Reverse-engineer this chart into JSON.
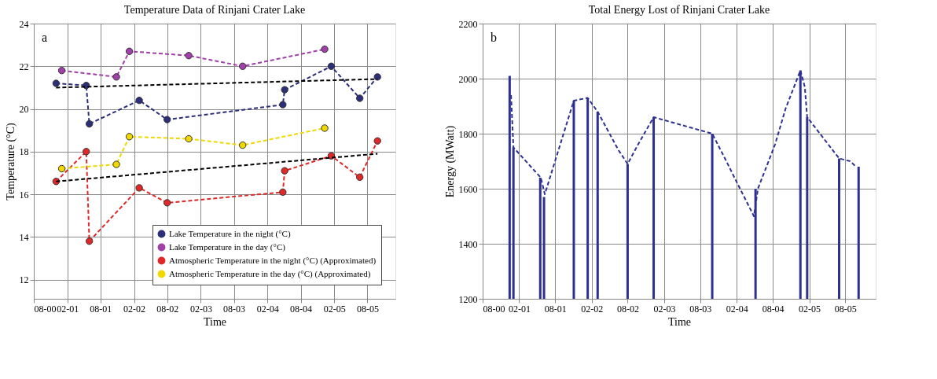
{
  "chart_data": [
    {
      "type": "line",
      "title": "Temperature Data  of Rinjani Crater Lake",
      "xlabel": "Time",
      "ylabel": "Temperature (°C)",
      "annotations": [
        "a"
      ],
      "xlim": [
        "2000-08",
        "2006-01"
      ],
      "xticks": [
        {
          "value": "2000-08",
          "label": "08-00"
        },
        {
          "value": "2001-02",
          "label": "02-01"
        },
        {
          "value": "2001-08",
          "label": "08-01"
        },
        {
          "value": "2002-02",
          "label": "02-02"
        },
        {
          "value": "2002-08",
          "label": "08-02"
        },
        {
          "value": "2003-02",
          "label": "02-03"
        },
        {
          "value": "2003-08",
          "label": "08-03"
        },
        {
          "value": "2004-02",
          "label": "02-04"
        },
        {
          "value": "2004-08",
          "label": "08-04"
        },
        {
          "value": "2005-02",
          "label": "02-05"
        },
        {
          "value": "2005-08",
          "label": "08-05"
        }
      ],
      "ylim": [
        11.1,
        24
      ],
      "yticks": [
        12,
        14,
        16,
        18,
        20,
        22,
        24
      ],
      "grid": true,
      "legend": "bottom right",
      "marker": "circle",
      "line_style": "dashed",
      "series": [
        {
          "name": "Lake Temperature in the night (°C)",
          "color": "#2b2f7a",
          "x": [
            "2000-12-01",
            "2001-05-15",
            "2001-06-01",
            "2002-03-01",
            "2002-08-01",
            "2004-04-25",
            "2004-05-05",
            "2005-01-15",
            "2005-06-20",
            "2005-09-25"
          ],
          "values": [
            21.2,
            21.1,
            19.3,
            20.4,
            19.5,
            20.2,
            20.9,
            22.0,
            20.5,
            21.5
          ]
        },
        {
          "name": "Lake Temperature in the day (°C)",
          "color": "#a040a8",
          "x": [
            "2001-01-01",
            "2001-10-27",
            "2002-01-06",
            "2002-11-27",
            "2003-09-18",
            "2004-12-10"
          ],
          "values": [
            21.8,
            21.5,
            22.7,
            22.5,
            22.0,
            22.8
          ]
        },
        {
          "name": "Atmospheric Temperature in the night (°C) (Approximated)",
          "color": "#e02828",
          "x": [
            "2000-12-01",
            "2001-05-15",
            "2001-06-01",
            "2002-03-01",
            "2002-08-01",
            "2004-04-25",
            "2004-05-05",
            "2005-01-15",
            "2005-06-20",
            "2005-09-25"
          ],
          "values": [
            16.6,
            18.0,
            13.8,
            16.3,
            15.6,
            16.1,
            17.1,
            17.8,
            16.8,
            18.5
          ]
        },
        {
          "name": "Atmospheric Temperature in the day (°C) (Approximated)",
          "color": "#f0d800",
          "x": [
            "2001-01-01",
            "2001-10-27",
            "2002-01-06",
            "2002-11-27",
            "2003-09-18",
            "2004-12-10"
          ],
          "values": [
            17.2,
            17.4,
            18.7,
            18.6,
            18.3,
            19.1
          ]
        },
        {
          "color": "#000000",
          "marker": "none",
          "x": [
            "2000-12-01",
            "2005-09-25"
          ],
          "values": [
            21.0,
            21.4
          ]
        },
        {
          "color": "#000000",
          "marker": "none",
          "x": [
            "2000-12-01",
            "2005-09-25"
          ],
          "values": [
            16.6,
            17.9
          ]
        }
      ]
    },
    {
      "type": "bar",
      "title": "Total  Energy Lost of Rinjani Crater Lake",
      "xlabel": "Time",
      "ylabel": "Energy (MWatt)",
      "annotations": [
        "b"
      ],
      "xlim": [
        "2000-08",
        "2006-01"
      ],
      "xticks": [
        {
          "value": "2000-08",
          "label": "08-00"
        },
        {
          "value": "2001-02",
          "label": "02-01"
        },
        {
          "value": "2001-08",
          "label": "08-01"
        },
        {
          "value": "2002-02",
          "label": "02-02"
        },
        {
          "value": "2002-08",
          "label": "08-02"
        },
        {
          "value": "2003-02",
          "label": "02-03"
        },
        {
          "value": "2003-08",
          "label": "08-03"
        },
        {
          "value": "2004-02",
          "label": "02-04"
        },
        {
          "value": "2004-08",
          "label": "08-04"
        },
        {
          "value": "2005-02",
          "label": "02-05"
        },
        {
          "value": "2005-08",
          "label": "08-05"
        }
      ],
      "ylim": [
        1200,
        2200
      ],
      "yticks": [
        1200,
        1400,
        1600,
        1800,
        2000,
        2200
      ],
      "grid": true,
      "series": [
        {
          "type": "bar",
          "color": "#2e3192",
          "x": [
            "2000-12-15",
            "2001-01-03",
            "2001-05-18",
            "2001-06-06",
            "2001-11-03",
            "2002-01-12",
            "2002-03-03",
            "2002-08-01",
            "2002-12-10",
            "2003-10-01",
            "2004-05-06",
            "2004-12-18",
            "2005-01-21",
            "2005-07-01",
            "2005-10-07"
          ],
          "values": [
            2010,
            1750,
            1640,
            1570,
            1920,
            1930,
            1880,
            1690,
            1860,
            1800,
            1600,
            2030,
            1860,
            1710,
            1680
          ]
        },
        {
          "type": "line",
          "color": "#2e3192",
          "line_style": "dashed",
          "marker": "none",
          "x": [
            "2000-12-22",
            "2001-01-03",
            "2001-05-21",
            "2001-06-10",
            "2001-11-03",
            "2002-01-12",
            "2002-03-03",
            "2002-06-16",
            "2002-08-01",
            "2002-09-22",
            "2002-12-10",
            "2003-10-01",
            "2003-12-04",
            "2004-02-04",
            "2004-04-28",
            "2004-05-18",
            "2004-08-12",
            "2004-10-04",
            "2004-12-18",
            "2005-01-09",
            "2005-01-21",
            "2005-07-01",
            "2005-08-25",
            "2005-09-24"
          ],
          "values": [
            1940,
            1750,
            1640,
            1580,
            1920,
            1930,
            1880,
            1740,
            1690,
            1760,
            1860,
            1800,
            1710,
            1620,
            1500,
            1600,
            1760,
            1890,
            2030,
            1970,
            1860,
            1710,
            1700,
            1680
          ]
        }
      ]
    }
  ]
}
